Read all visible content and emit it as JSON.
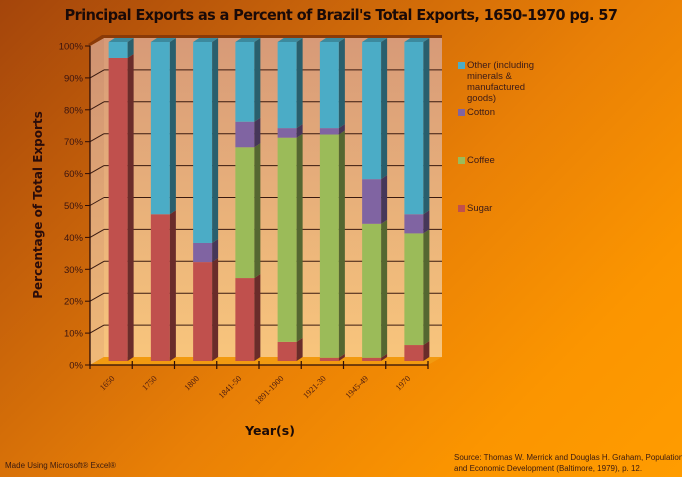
{
  "chart_data": {
    "type": "bar",
    "stacked": true,
    "three_d": true,
    "title": "Principal Exports as a Percent of Brazil's Total Exports, 1650-1970 pg. 57",
    "xlabel": "Year(s)",
    "ylabel": "Percentage of Total Exports",
    "ylim": [
      0,
      100
    ],
    "yticks": [
      "0%",
      "10%",
      "20%",
      "30%",
      "40%",
      "50%",
      "60%",
      "70%",
      "80%",
      "90%",
      "100%"
    ],
    "categories": [
      "1650",
      "1750",
      "1800",
      "1841-50",
      "1891-1900",
      "1921-30",
      "1945-49",
      "1970"
    ],
    "series": [
      {
        "name": "Sugar",
        "color": "#c0504d",
        "values": [
          95,
          46,
          31,
          26,
          6,
          1,
          1,
          5
        ]
      },
      {
        "name": "Coffee",
        "color": "#9bbb59",
        "values": [
          0,
          0,
          0,
          41,
          64,
          70,
          42,
          35
        ]
      },
      {
        "name": "Cotton",
        "color": "#8064a2",
        "values": [
          0,
          0,
          6,
          8,
          3,
          2,
          14,
          6
        ]
      },
      {
        "name": "Other (including minerals & manufactured goods)",
        "color": "#4bacc6",
        "values": [
          5,
          54,
          63,
          25,
          27,
          27,
          43,
          54
        ]
      }
    ],
    "legend": {
      "position": "right",
      "entries": [
        {
          "label": "Other (including minerals & manufactured goods)",
          "color": "#4bacc6"
        },
        {
          "label": "Cotton",
          "color": "#8064a2"
        },
        {
          "label": "Coffee",
          "color": "#9bbb59"
        },
        {
          "label": "Sugar",
          "color": "#c0504d"
        }
      ]
    },
    "grid": true
  },
  "footer": {
    "made_with": "Made Using Microsoft® Excel®",
    "source_line1": "Source: Thomas W. Merrick and Douglas H. Graham, Population",
    "source_line2": "and Economic Development (Baltimore, 1979), p. 12."
  }
}
